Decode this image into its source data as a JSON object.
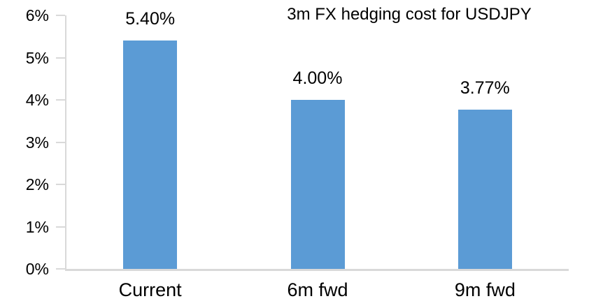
{
  "chart_data": {
    "type": "bar",
    "title": "3m FX hedging cost for USDJPY",
    "categories": [
      "Current",
      "6m fwd",
      "9m fwd"
    ],
    "values": [
      5.4,
      4.0,
      3.77
    ],
    "value_labels": [
      "5.40%",
      "4.00%",
      "3.77%"
    ],
    "xlabel": "",
    "ylabel": "",
    "ylim": [
      0,
      6
    ],
    "y_ticks": [
      {
        "value": 0,
        "label": "0%"
      },
      {
        "value": 1,
        "label": "1%"
      },
      {
        "value": 2,
        "label": "2%"
      },
      {
        "value": 3,
        "label": "3%"
      },
      {
        "value": 4,
        "label": "4%"
      },
      {
        "value": 5,
        "label": "5%"
      },
      {
        "value": 6,
        "label": "6%"
      }
    ],
    "grid": false,
    "legend": false,
    "colors": {
      "bar": "#5B9BD5",
      "axis": "#D9D9D9",
      "text": "#000000",
      "background": "#FFFFFF"
    }
  }
}
